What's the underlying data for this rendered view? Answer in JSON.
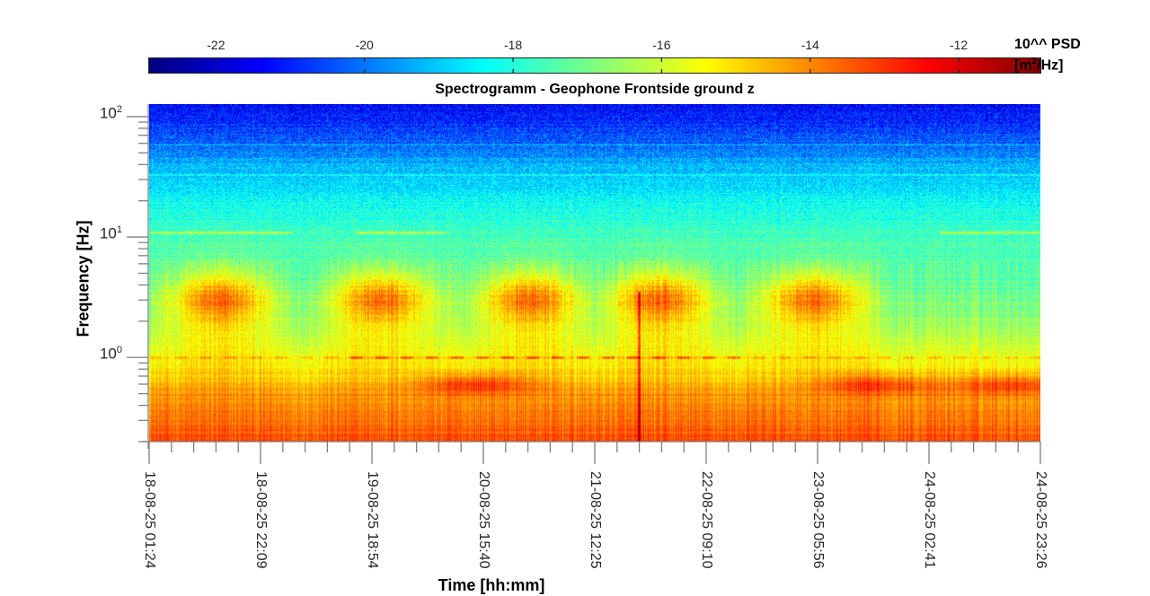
{
  "chart_data": {
    "type": "heatmap",
    "title": "Spectrogramm - Geophone Frontside ground z",
    "xlabel": "Time [hh:mm]",
    "ylabel": "Frequency [Hz]",
    "x_tick_labels": [
      "18-08-25 01:24",
      "18-08-25 22:09",
      "19-08-25 18:54",
      "20-08-25 15:40",
      "21-08-25 12:25",
      "22-08-25 09:10",
      "23-08-25 05:56",
      "24-08-25 02:41",
      "24-08-25 23:26"
    ],
    "y_scale": "log",
    "ylim": [
      0.2,
      127
    ],
    "y_ticks": [
      {
        "base": "10",
        "exp": "2",
        "value": 100
      },
      {
        "base": "10",
        "exp": "1",
        "value": 10
      },
      {
        "base": "10",
        "exp": "0",
        "value": 1
      }
    ],
    "colorbar": {
      "label_line1": "10^^ PSD",
      "label_line2_prefix": "[m",
      "label_line2_sup": "2",
      "label_line2_suffix": "/Hz]",
      "ticks": [
        "-22",
        "-20",
        "-18",
        "-16",
        "-14",
        "-12"
      ],
      "tick_values": [
        -22,
        -20,
        -18,
        -16,
        -14,
        -12
      ],
      "clim": [
        -22.9,
        -10.9
      ],
      "colormap": "jet"
    },
    "axis_color": "#808080"
  }
}
